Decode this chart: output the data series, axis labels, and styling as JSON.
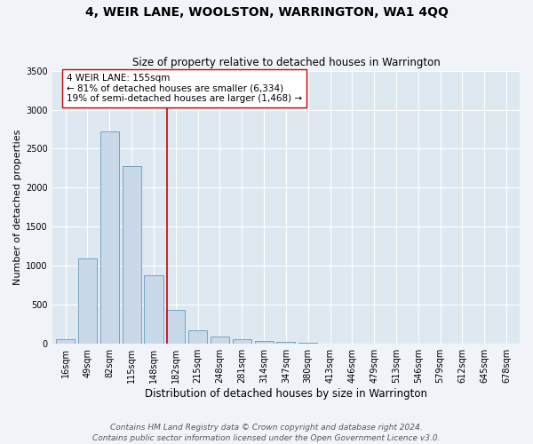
{
  "title": "4, WEIR LANE, WOOLSTON, WARRINGTON, WA1 4QQ",
  "subtitle": "Size of property relative to detached houses in Warrington",
  "xlabel": "Distribution of detached houses by size in Warrington",
  "ylabel": "Number of detached properties",
  "bar_color": "#c9d9ea",
  "bar_edge_color": "#6699bb",
  "bg_color": "#dde8f0",
  "grid_color": "#ffffff",
  "fig_bg_color": "#f0f4f8",
  "categories": [
    "16sqm",
    "49sqm",
    "82sqm",
    "115sqm",
    "148sqm",
    "182sqm",
    "215sqm",
    "248sqm",
    "281sqm",
    "314sqm",
    "347sqm",
    "380sqm",
    "413sqm",
    "446sqm",
    "479sqm",
    "513sqm",
    "546sqm",
    "579sqm",
    "612sqm",
    "645sqm",
    "678sqm"
  ],
  "values": [
    55,
    1100,
    2720,
    2280,
    880,
    430,
    170,
    95,
    55,
    38,
    20,
    12,
    8,
    5,
    4,
    4,
    3,
    3,
    3,
    3,
    3
  ],
  "ylim": [
    0,
    3500
  ],
  "yticks": [
    0,
    500,
    1000,
    1500,
    2000,
    2500,
    3000,
    3500
  ],
  "property_line_x": 4.62,
  "property_line_color": "#cc0000",
  "annotation_text": "4 WEIR LANE: 155sqm\n← 81% of detached houses are smaller (6,334)\n19% of semi-detached houses are larger (1,468) →",
  "annotation_box_color": "#ffffff",
  "annotation_border_color": "#cc0000",
  "footer_text": "Contains HM Land Registry data © Crown copyright and database right 2024.\nContains public sector information licensed under the Open Government Licence v3.0.",
  "title_fontsize": 10,
  "subtitle_fontsize": 8.5,
  "ylabel_fontsize": 8,
  "xlabel_fontsize": 8.5,
  "tick_fontsize": 7,
  "annotation_fontsize": 7.5,
  "footer_fontsize": 6.5
}
